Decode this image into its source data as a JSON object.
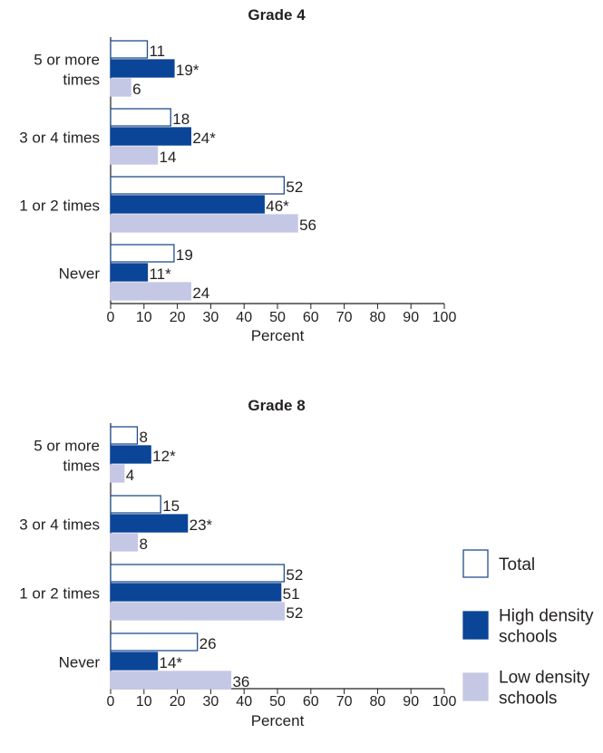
{
  "chart_data": [
    {
      "type": "bar",
      "orientation": "horizontal",
      "title": "Grade 4",
      "categories": [
        [
          "5 or more",
          "times"
        ],
        [
          "3 or 4 times"
        ],
        [
          "1 or 2 times"
        ],
        [
          "Never"
        ]
      ],
      "series": [
        {
          "name": "Total",
          "values": [
            11,
            18,
            52,
            19
          ],
          "labels": [
            "11",
            "18",
            "52",
            "19"
          ]
        },
        {
          "name": "High density schools",
          "values": [
            19,
            24,
            46,
            11
          ],
          "labels": [
            "19*",
            "24*",
            "46*",
            "11*"
          ]
        },
        {
          "name": "Low density schools",
          "values": [
            6,
            14,
            56,
            24
          ],
          "labels": [
            "6",
            "14",
            "56",
            "24"
          ]
        }
      ],
      "xlabel": "Percent",
      "xlim": [
        0,
        100
      ],
      "xticks": [
        0,
        10,
        20,
        30,
        40,
        50,
        60,
        70,
        80,
        90,
        100
      ],
      "grid": false
    },
    {
      "type": "bar",
      "orientation": "horizontal",
      "title": "Grade 8",
      "categories": [
        [
          "5 or more",
          "times"
        ],
        [
          "3 or 4 times"
        ],
        [
          "1 or 2 times"
        ],
        [
          "Never"
        ]
      ],
      "series": [
        {
          "name": "Total",
          "values": [
            8,
            15,
            52,
            26
          ],
          "labels": [
            "8",
            "15",
            "52",
            "26"
          ]
        },
        {
          "name": "High density schools",
          "values": [
            12,
            23,
            51,
            14
          ],
          "labels": [
            "12*",
            "23*",
            "51",
            "14*"
          ]
        },
        {
          "name": "Low density schools",
          "values": [
            4,
            8,
            52,
            36
          ],
          "labels": [
            "4",
            "8",
            "52",
            "36"
          ]
        }
      ],
      "xlabel": "Percent",
      "xlim": [
        0,
        100
      ],
      "xticks": [
        0,
        10,
        20,
        30,
        40,
        50,
        60,
        70,
        80,
        90,
        100
      ],
      "grid": false
    }
  ],
  "legend": {
    "placement": "right",
    "items": [
      {
        "label": [
          "Total"
        ]
      },
      {
        "label": [
          "High density",
          "schools"
        ]
      },
      {
        "label": [
          "Low density",
          "schools"
        ]
      }
    ]
  },
  "colors": {
    "total_fill": "#ffffff",
    "total_stroke": "#1f4e8c",
    "high": "#0b4597",
    "low": "#c5c8e4",
    "axis": "#231f20"
  }
}
